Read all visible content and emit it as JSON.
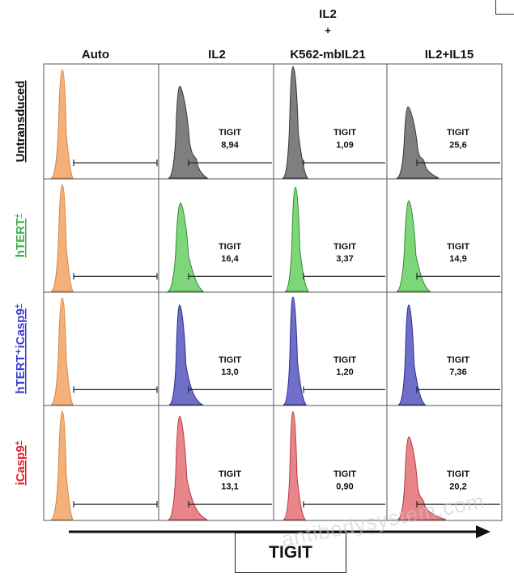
{
  "chart_data": {
    "type": "histogram-grid",
    "header_top": [
      "IL2",
      "+"
    ],
    "columns": [
      "Auto",
      "IL2",
      "K562-mbIL21",
      "IL2+IL15"
    ],
    "rows": [
      {
        "label": "Untransduced",
        "sup": "",
        "color": "#111111",
        "fill": "#7f7f7f",
        "stroke": "#3a3a3a"
      },
      {
        "label": "hTERT",
        "sup": "+",
        "color": "#39b54a",
        "fill": "#7ed67a",
        "stroke": "#2f8f2f"
      },
      {
        "label": "hTERT⁺iCasp9",
        "sup": "+",
        "color": "#3d3dd1",
        "fill": "#6f6fc9",
        "stroke": "#2b2b8f"
      },
      {
        "label": "iCasp9",
        "sup": "+",
        "color": "#e0202a",
        "fill": "#e8858a",
        "stroke": "#b83b41"
      }
    ],
    "auto_color": {
      "fill": "#f4b07a",
      "stroke": "#d7883f"
    },
    "gate_label": "TIGIT",
    "values": [
      [
        "8,94",
        "1,09",
        "25,6"
      ],
      [
        "16,4",
        "3,37",
        "14,9"
      ],
      [
        "13,0",
        "1,20",
        "7,36"
      ],
      [
        "13,1",
        "0,90",
        "20,2"
      ]
    ],
    "xlabel": "TIGIT"
  },
  "watermark": "antibodysystem.com"
}
